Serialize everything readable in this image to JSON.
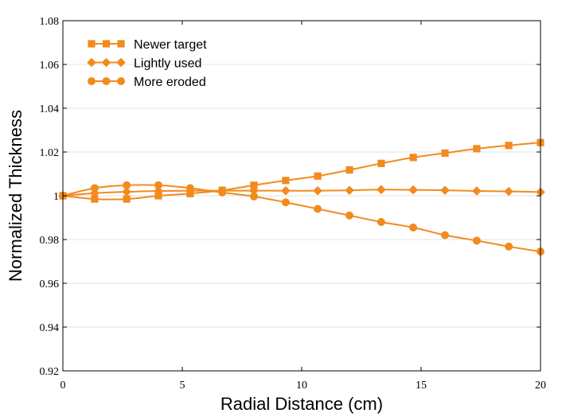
{
  "chart_data": {
    "type": "line",
    "title": "",
    "xlabel": "Radial Distance (cm)",
    "ylabel": "Normalized Thickness",
    "xlim": [
      0,
      20
    ],
    "ylim": [
      0.92,
      1.08
    ],
    "xticks": [
      0,
      5,
      10,
      15,
      20
    ],
    "xtick_labels": [
      "0",
      "5",
      "10",
      "15",
      "20"
    ],
    "yticks": [
      0.92,
      0.94,
      0.96,
      0.98,
      1.0,
      1.02,
      1.04,
      1.06,
      1.08
    ],
    "ytick_labels": [
      "0.92",
      "0.94",
      "0.96",
      "0.98",
      "1",
      "1.02",
      "1.04",
      "1.06",
      "1.08"
    ],
    "grid": "horizontal",
    "legend_position": "top-left",
    "color": "#F28A1E",
    "series": [
      {
        "name": "Newer target",
        "marker": "square",
        "x": [
          0,
          1.33,
          2.67,
          4.0,
          5.33,
          6.67,
          8.0,
          9.33,
          10.67,
          12.0,
          13.33,
          14.67,
          16.0,
          17.33,
          18.67,
          20.0
        ],
        "values": [
          1.0,
          0.9985,
          0.9985,
          1.0,
          1.001,
          1.0025,
          1.0048,
          1.007,
          1.009,
          1.0118,
          1.0148,
          1.0175,
          1.0195,
          1.0215,
          1.023,
          1.0243
        ]
      },
      {
        "name": "Lightly used",
        "marker": "diamond",
        "x": [
          0,
          1.33,
          2.67,
          4.0,
          5.33,
          6.67,
          8.0,
          9.33,
          10.67,
          12.0,
          13.33,
          14.67,
          16.0,
          17.33,
          18.67,
          20.0
        ],
        "values": [
          1.0,
          1.0012,
          1.0018,
          1.0022,
          1.0023,
          1.0023,
          1.0023,
          1.0023,
          1.0023,
          1.0025,
          1.0028,
          1.0027,
          1.0025,
          1.0022,
          1.002,
          1.0017
        ]
      },
      {
        "name": "More eroded",
        "marker": "circle",
        "x": [
          0,
          1.33,
          2.67,
          4.0,
          5.33,
          6.67,
          8.0,
          9.33,
          10.67,
          12.0,
          13.33,
          14.67,
          16.0,
          17.33,
          18.67,
          20.0
        ],
        "values": [
          1.0,
          1.0035,
          1.0048,
          1.0048,
          1.0035,
          1.0015,
          0.9997,
          0.997,
          0.994,
          0.991,
          0.988,
          0.9855,
          0.982,
          0.9795,
          0.9768,
          0.9745
        ]
      }
    ]
  }
}
